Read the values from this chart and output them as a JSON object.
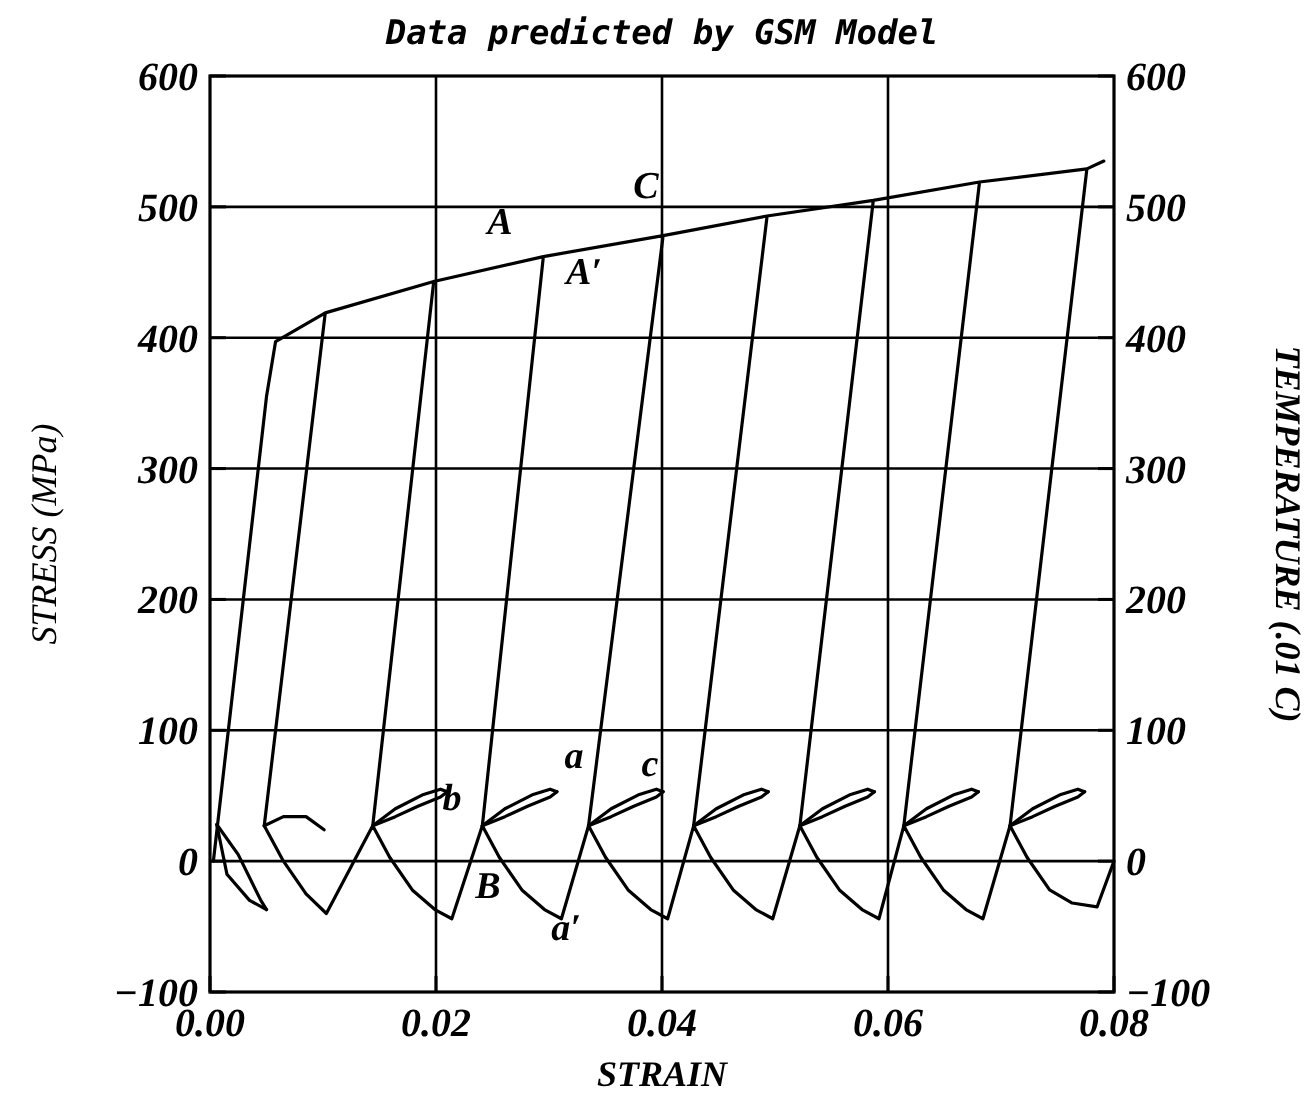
{
  "chart_data": {
    "type": "line",
    "title": "Data predicted by GSM Model",
    "xlabel": "STRAIN",
    "ylabel": "STRESS (MPa)",
    "y2label": "TEMPERATURE (.01 C)",
    "xlim": [
      0,
      0.08
    ],
    "xticks": [
      {
        "value": 0,
        "label": "0.00"
      },
      {
        "value": 0.02,
        "label": "0.02"
      },
      {
        "value": 0.04,
        "label": "0.04"
      },
      {
        "value": 0.06,
        "label": "0.06"
      },
      {
        "value": 0.08,
        "label": "0.08"
      }
    ],
    "ylim": [
      -100,
      600
    ],
    "yticks": [
      {
        "value": -100,
        "label": "−100"
      },
      0,
      100,
      200,
      300,
      400,
      500,
      600
    ],
    "y2lim": [
      -100,
      600
    ],
    "y2ticks": [
      {
        "value": -100,
        "label": "−100"
      },
      0,
      100,
      200,
      300,
      400,
      500,
      600
    ],
    "grid": true,
    "marker": "none",
    "line_style": "solid",
    "series": [
      {
        "color": "#000000",
        "x": [
          0.0003,
          0.005,
          0.0058,
          0.0102,
          0.0048,
          0.0102,
          0.0198,
          0.0144,
          0.0198,
          0.0295,
          0.0241,
          0.0295,
          0.0401,
          0.0335,
          0.0401,
          0.0493,
          0.0428,
          0.0493,
          0.0587,
          0.0522,
          0.0587,
          0.0681,
          0.0614,
          0.0681,
          0.0776,
          0.0708,
          0.0776,
          0.0791
        ],
        "values": [
          0,
          355,
          397,
          419,
          27,
          419,
          443,
          27,
          443,
          462,
          27,
          462,
          478,
          27,
          478,
          493,
          27,
          493,
          505,
          27,
          505,
          519,
          27,
          519,
          529,
          27,
          529,
          535
        ]
      },
      {
        "color": "#000000",
        "x": [
          0.0006,
          0.0025,
          0.0045,
          0.005
        ],
        "values": [
          28,
          5,
          -30,
          -37
        ]
      },
      {
        "color": "#000000",
        "x": [
          0.0006,
          0.0015,
          0.0035,
          0.005
        ],
        "values": [
          28,
          -10,
          -30,
          -37
        ]
      },
      {
        "color": "#000000",
        "x": [
          0.0048,
          0.0065,
          0.0085,
          0.0101
        ],
        "values": [
          27,
          34,
          34,
          24
        ]
      },
      {
        "color": "#000000",
        "x": [
          0.0048,
          0.0065,
          0.0085,
          0.0103,
          0.0144,
          0.0159,
          0.0179,
          0.0199,
          0.0214,
          0.0241,
          0.0256,
          0.0276,
          0.0296,
          0.0311,
          0.0335,
          0.035,
          0.037,
          0.039,
          0.0405,
          0.0428,
          0.0443,
          0.0463,
          0.0483,
          0.0498,
          0.0522,
          0.0537,
          0.0557,
          0.0577,
          0.0592,
          0.0614,
          0.0629,
          0.0649,
          0.0669,
          0.0684,
          0.0708,
          0.0723,
          0.0743,
          0.0763,
          0.0785,
          0.08
        ],
        "values": [
          27,
          0,
          -25,
          -40,
          27,
          3,
          -22,
          -37,
          -44,
          27,
          3,
          -22,
          -37,
          -44,
          27,
          3,
          -22,
          -37,
          -44,
          27,
          3,
          -22,
          -37,
          -44,
          27,
          3,
          -22,
          -37,
          -44,
          27,
          3,
          -22,
          -37,
          -44,
          27,
          3,
          -22,
          -32,
          -35,
          0
        ]
      },
      {
        "color": "#000000",
        "x": [
          0.0144,
          0.0164,
          0.0189,
          0.0204,
          0.021,
          0.0224,
          0.0241,
          0.0261,
          0.0286,
          0.0301,
          0.0307,
          0.0321,
          0.0335,
          0.0355,
          0.038,
          0.0395,
          0.0401,
          0.0415,
          0.0428,
          0.0448,
          0.0473,
          0.0488,
          0.0494,
          0.0508,
          0.0522,
          0.0542,
          0.0567,
          0.0582,
          0.0588,
          0.0602,
          0.0614,
          0.0634,
          0.0659,
          0.0674,
          0.068,
          0.0694,
          0.0708,
          0.0728,
          0.0753,
          0.0768,
          0.0774
        ],
        "values": [
          27,
          40,
          51,
          55,
          53,
          null,
          27,
          40,
          51,
          55,
          53,
          null,
          27,
          40,
          51,
          55,
          53,
          null,
          27,
          40,
          51,
          55,
          53,
          null,
          27,
          40,
          51,
          55,
          53,
          null,
          27,
          40,
          51,
          55,
          53,
          null,
          27,
          40,
          51,
          55,
          53
        ]
      },
      {
        "color": "#000000",
        "x": [
          0.0144,
          0.0164,
          0.0184,
          0.0204,
          0.021,
          0.0224,
          0.0241,
          0.0261,
          0.0281,
          0.0301,
          0.0307,
          0.0321,
          0.0335,
          0.0355,
          0.0375,
          0.0395,
          0.0401,
          0.0415,
          0.0428,
          0.0448,
          0.0468,
          0.0488,
          0.0494,
          0.0508,
          0.0522,
          0.0542,
          0.0562,
          0.0582,
          0.0588,
          0.0602,
          0.0614,
          0.0634,
          0.0654,
          0.0674,
          0.068,
          0.0694,
          0.0708,
          0.0728,
          0.0748,
          0.0768,
          0.0774
        ],
        "values": [
          27,
          34,
          42,
          49,
          53,
          null,
          27,
          34,
          42,
          49,
          53,
          null,
          27,
          34,
          42,
          49,
          53,
          null,
          27,
          34,
          42,
          49,
          53,
          null,
          27,
          34,
          42,
          49,
          53,
          null,
          27,
          34,
          42,
          49,
          53,
          null,
          27,
          34,
          42,
          49,
          53
        ]
      }
    ],
    "annotations": [
      "A",
      "A′",
      "C",
      "B",
      "b",
      "a",
      "c",
      "a′"
    ]
  }
}
